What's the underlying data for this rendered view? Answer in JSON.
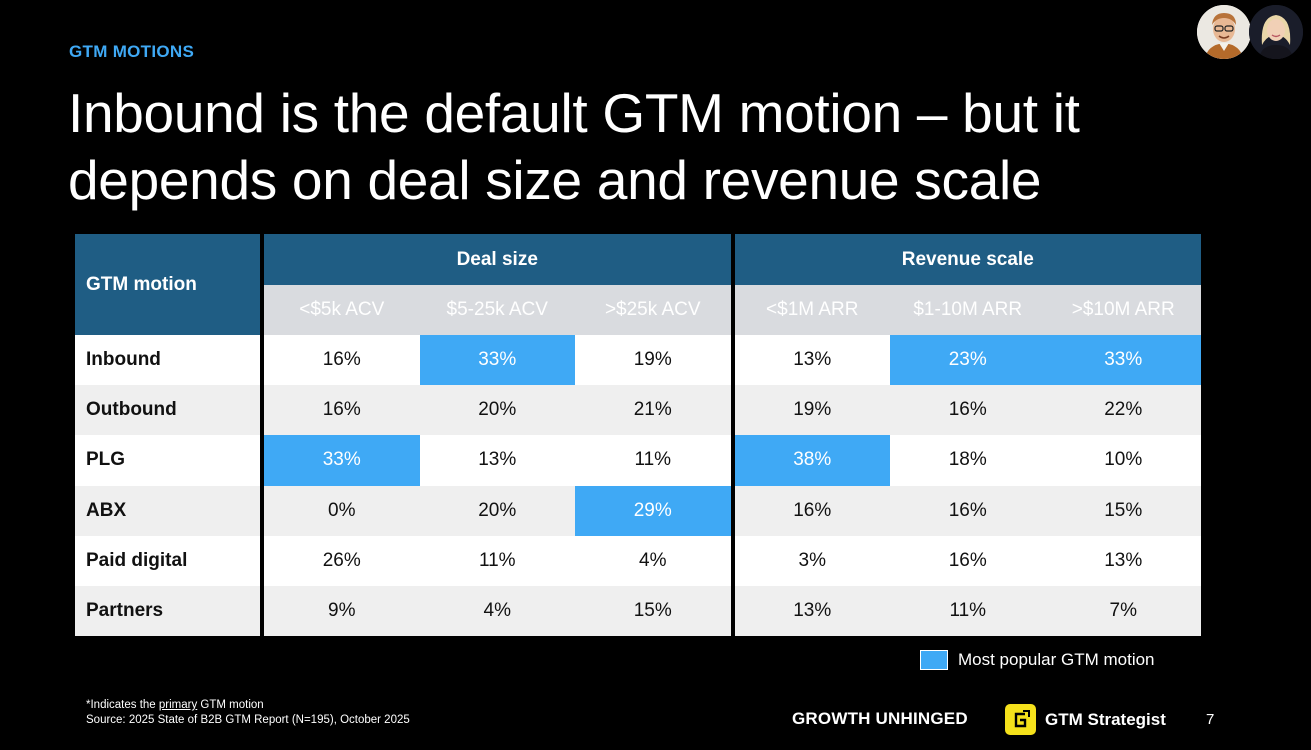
{
  "header": {
    "eyebrow": "GTM MOTIONS",
    "title": "Inbound is the default GTM motion – but it depends on deal size and revenue scale"
  },
  "table": {
    "corner_label": "GTM motion",
    "group_headers": [
      "Deal size",
      "Revenue scale"
    ],
    "columns": [
      "<$5k ACV",
      "$5-25k ACV",
      ">$25k ACV",
      "<$1M ARR",
      "$1-10M ARR",
      ">$10M ARR"
    ],
    "rows": [
      {
        "label": "Inbound",
        "values": [
          "16%",
          "33%",
          "19%",
          "13%",
          "23%",
          "33%"
        ],
        "highlight": [
          1,
          4,
          5
        ]
      },
      {
        "label": "Outbound",
        "values": [
          "16%",
          "20%",
          "21%",
          "19%",
          "16%",
          "22%"
        ],
        "highlight": []
      },
      {
        "label": "PLG",
        "values": [
          "33%",
          "13%",
          "11%",
          "38%",
          "18%",
          "10%"
        ],
        "highlight": [
          0,
          3
        ]
      },
      {
        "label": "ABX",
        "values": [
          "0%",
          "20%",
          "29%",
          "16%",
          "16%",
          "15%"
        ],
        "highlight": [
          2
        ]
      },
      {
        "label": "Paid digital",
        "values": [
          "26%",
          "11%",
          "4%",
          "3%",
          "16%",
          "13%"
        ],
        "highlight": []
      },
      {
        "label": "Partners",
        "values": [
          "9%",
          "4%",
          "15%",
          "13%",
          "11%",
          "7%"
        ],
        "highlight": []
      }
    ]
  },
  "legend": {
    "label": "Most popular GTM motion",
    "color": "#3fa9f5"
  },
  "footer": {
    "note_prefix": "*Indicates the ",
    "note_underlined": "primary",
    "note_suffix": " GTM motion",
    "source": "Source: 2025 State of B2B GTM Report (N=195), October 2025",
    "brand_left": "GROWTH UNHINGED",
    "brand_right": "GTM Strategist",
    "page_number": "7"
  },
  "colors": {
    "accent": "#3fa9f5",
    "header_dark": "#1f5d84",
    "header_light": "#d9dbdf"
  }
}
